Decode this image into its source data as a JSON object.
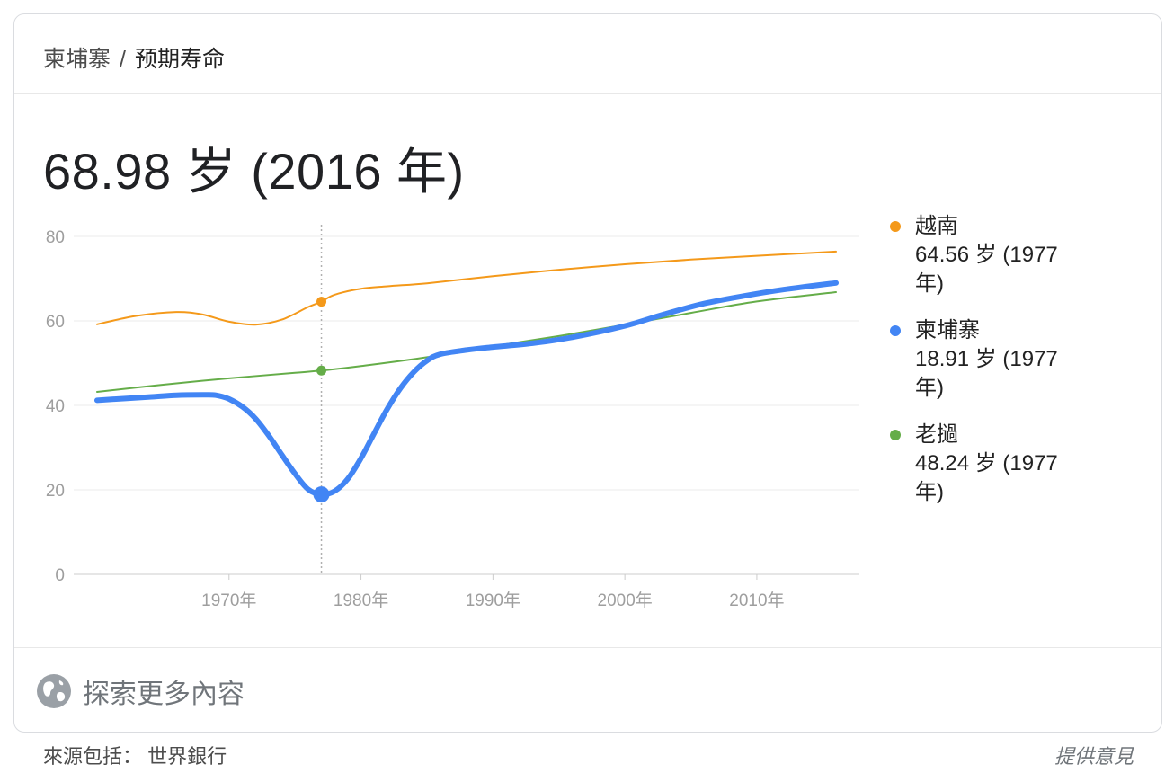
{
  "breadcrumb": {
    "country": "柬埔寨",
    "separator": "/",
    "metric": "预期寿命"
  },
  "headline": "68.98 岁 (2016 年)",
  "chart_data": {
    "type": "line",
    "ylim": [
      0,
      80
    ],
    "yticks": [
      "0",
      "20",
      "40",
      "60",
      "80"
    ],
    "xticks": [
      {
        "year": 1970,
        "label": "1970年"
      },
      {
        "year": 1980,
        "label": "1980年"
      },
      {
        "year": 1990,
        "label": "1990年"
      },
      {
        "year": 2000,
        "label": "2000年"
      },
      {
        "year": 2010,
        "label": "2010年"
      }
    ],
    "xlim": [
      1960,
      2016
    ],
    "hover_year": 1977,
    "series": [
      {
        "name": "越南",
        "color": "#f4991a",
        "width": 2,
        "x": [
          1960,
          1963,
          1966,
          1968,
          1970,
          1972,
          1974,
          1976,
          1977,
          1978,
          1980,
          1982,
          1985,
          1990,
          1995,
          2000,
          2005,
          2010,
          2016
        ],
        "y": [
          59.2,
          61.2,
          62.1,
          61.5,
          59.8,
          59.1,
          60.3,
          63.3,
          64.56,
          66.2,
          67.6,
          68.2,
          68.9,
          70.6,
          72.1,
          73.4,
          74.5,
          75.4,
          76.4
        ]
      },
      {
        "name": "老撾",
        "color": "#65ad49",
        "width": 2,
        "x": [
          1960,
          1965,
          1970,
          1975,
          1977,
          1980,
          1985,
          1990,
          1995,
          2000,
          2005,
          2010,
          2016
        ],
        "y": [
          43.2,
          44.9,
          46.4,
          47.7,
          48.24,
          49.3,
          51.4,
          54.0,
          56.4,
          59.1,
          61.9,
          64.6,
          66.8
        ]
      },
      {
        "name": "柬埔寨",
        "color": "#4285f4",
        "width": 6,
        "x": [
          1960,
          1962,
          1964,
          1966,
          1968,
          1969,
          1970,
          1971,
          1972,
          1973,
          1974,
          1975,
          1976,
          1977,
          1978,
          1979,
          1980,
          1981,
          1982,
          1983,
          1984,
          1985,
          1986,
          1988,
          1990,
          1993,
          1996,
          2000,
          2003,
          2006,
          2009,
          2012,
          2016
        ],
        "y": [
          41.2,
          41.6,
          42.0,
          42.4,
          42.5,
          42.4,
          41.5,
          39.7,
          36.9,
          32.9,
          28.3,
          23.8,
          20.1,
          18.91,
          19.7,
          22.6,
          27.5,
          33.4,
          39.2,
          44.1,
          47.9,
          50.6,
          52.1,
          53.1,
          53.8,
          54.7,
          56.1,
          58.8,
          61.6,
          64.1,
          65.9,
          67.4,
          68.98
        ]
      }
    ],
    "legend": [
      {
        "name": "越南",
        "value": "64.56 岁 (1977",
        "value2": "年)",
        "color": "#f4991a"
      },
      {
        "name": "柬埔寨",
        "value": "18.91 岁 (1977",
        "value2": "年)",
        "color": "#4285f4"
      },
      {
        "name": "老撾",
        "value": "48.24 岁 (1977",
        "value2": "年)",
        "color": "#65ad49"
      }
    ]
  },
  "footer": {
    "explore_label": "探索更多內容",
    "explore_icon": "globe-icon"
  },
  "source": "來源包括： 世界銀行",
  "feedback": "提供意見"
}
